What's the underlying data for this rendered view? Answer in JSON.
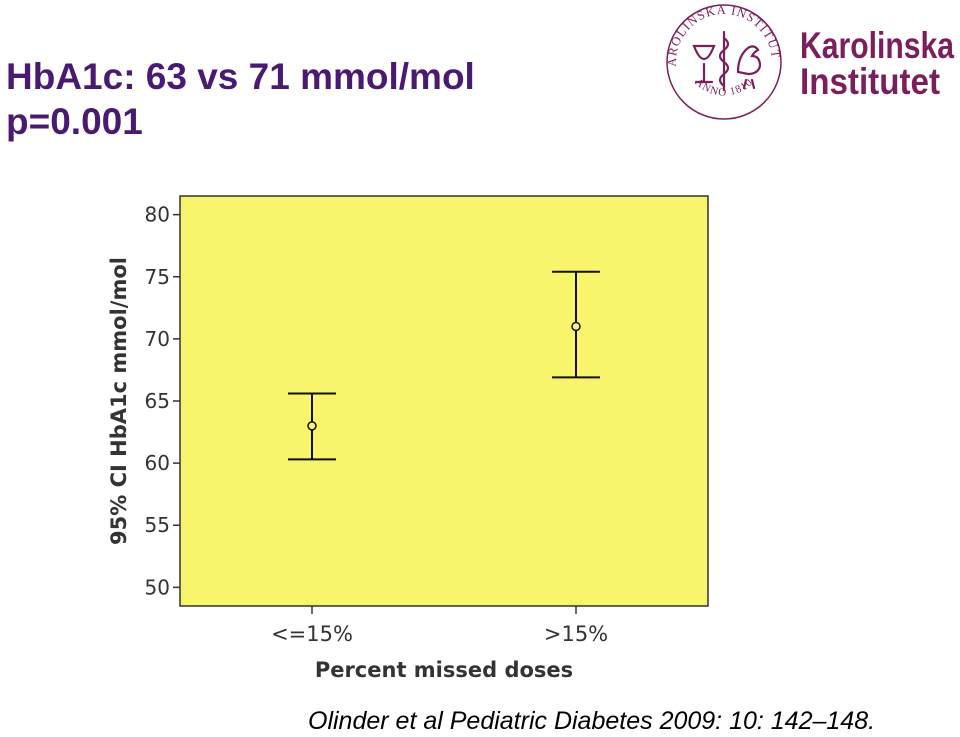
{
  "title": {
    "line1": "HbA1c:  63 vs 71 mmol/mol",
    "line2": "p=0.001"
  },
  "logo": {
    "icon": "karolinska-seal-icon",
    "seal_text_top": "KAROLINSKA INSTITUTET",
    "seal_text_bottom": "ANNO 1810",
    "wordmark_line1": "Karolinska",
    "wordmark_line2": "Institutet",
    "color": "#7b1f5c"
  },
  "chart_data": {
    "type": "errorbar",
    "categories": [
      "<=15%",
      ">15%"
    ],
    "means": [
      63,
      71
    ],
    "lower": [
      60.3,
      66.9
    ],
    "upper": [
      65.6,
      75.4
    ],
    "xlabel": "Percent missed doses",
    "ylabel": "95% CI HbA1c mmol/mol",
    "ylim": [
      48.5,
      81.5
    ],
    "yticks": [
      50,
      55,
      60,
      65,
      70,
      75,
      80
    ],
    "grid": false,
    "plot_bg": "#f8f56c"
  },
  "citation": "Olinder et al Pediatric Diabetes 2009: 10: 142–148."
}
